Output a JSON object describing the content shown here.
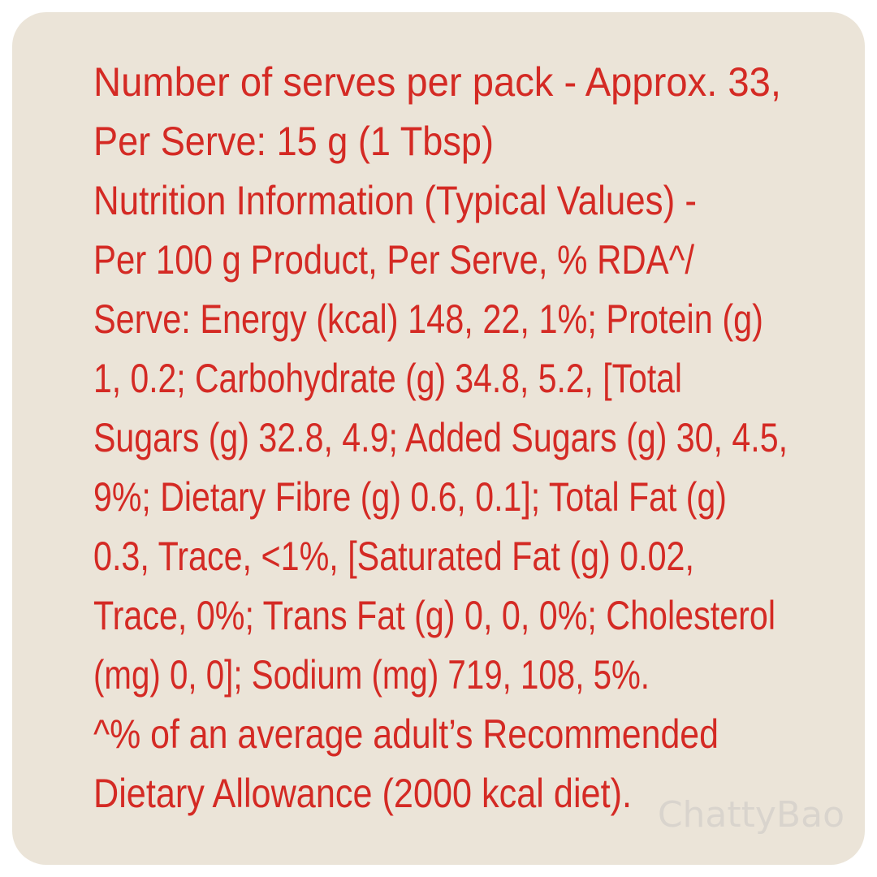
{
  "label": {
    "lines": [
      "Number of serves per pack - Approx. 33,",
      "Per Serve: 15 g (1 Tbsp)",
      "Nutrition Information (Typical Values) -",
      "Per 100 g Product, Per Serve, % RDA^/",
      "Serve: Energy (kcal) 148, 22, 1%; Protein (g)",
      "1, 0.2; Carbohydrate (g) 34.8, 5.2, [Total",
      "Sugars (g) 32.8, 4.9; Added Sugars (g) 30, 4.5,",
      "9%; Dietary Fibre (g) 0.6, 0.1]; Total Fat (g)",
      "0.3, Trace, <1%, [Saturated Fat (g) 0.02,",
      "Trace, 0%; Trans Fat (g) 0, 0, 0%; Cholesterol",
      "(mg) 0, 0]; Sodium (mg) 719, 108, 5%.",
      "^% of an average adult’s Recommended",
      "Dietary Allowance (2000 kcal diet)."
    ]
  },
  "watermark": "ChattyBao"
}
